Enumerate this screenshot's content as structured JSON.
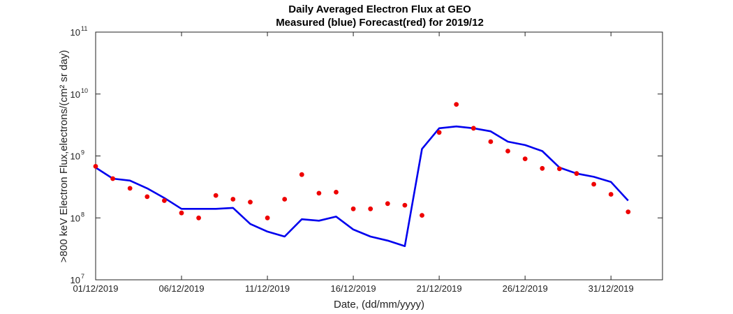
{
  "chart_data": {
    "type": "line",
    "title": "Daily Averaged Electron Flux at GEO",
    "subtitle": "Measured (blue) Forecast(red) for 2019/12",
    "xlabel": "Date, (dd/mm/yyyy)",
    "ylabel": ">800 keV Electron Flux,electrons/(cm² sr day)",
    "y_scale": "log",
    "ylim": [
      10000000.0,
      100000000000.0
    ],
    "xlim": [
      "2019-12-01",
      "2020-01-03"
    ],
    "x_ticks": [
      "01/12/2019",
      "06/12/2019",
      "11/12/2019",
      "16/12/2019",
      "21/12/2019",
      "26/12/2019",
      "31/12/2019"
    ],
    "y_ticks": [
      {
        "base": "10",
        "exp": "7"
      },
      {
        "base": "10",
        "exp": "8"
      },
      {
        "base": "10",
        "exp": "9"
      },
      {
        "base": "10",
        "exp": "10"
      },
      {
        "base": "10",
        "exp": "11"
      }
    ],
    "grid": false,
    "colors": {
      "measured": "#0000ee",
      "forecast": "#ee0000"
    },
    "series": [
      {
        "style": "line",
        "color": "#0000ee",
        "x": [
          "2019-12-01",
          "2019-12-02",
          "2019-12-03",
          "2019-12-04",
          "2019-12-05",
          "2019-12-06",
          "2019-12-07",
          "2019-12-08",
          "2019-12-09",
          "2019-12-10",
          "2019-12-11",
          "2019-12-12",
          "2019-12-13",
          "2019-12-14",
          "2019-12-15",
          "2019-12-16",
          "2019-12-17",
          "2019-12-18",
          "2019-12-19",
          "2019-12-20",
          "2019-12-21",
          "2019-12-22",
          "2019-12-23",
          "2019-12-24",
          "2019-12-25",
          "2019-12-26",
          "2019-12-27",
          "2019-12-28",
          "2019-12-29",
          "2019-12-30",
          "2019-12-31",
          "2020-01-01"
        ],
        "values": [
          650000000.0,
          430000000.0,
          400000000.0,
          300000000.0,
          210000000.0,
          140000000.0,
          140000000.0,
          140000000.0,
          145000000.0,
          80000000.0,
          60000000.0,
          50000000.0,
          95000000.0,
          90000000.0,
          105000000.0,
          65000000.0,
          50000000.0,
          43000000.0,
          35000000.0,
          1300000000.0,
          2800000000.0,
          3000000000.0,
          2800000000.0,
          2500000000.0,
          1700000000.0,
          1500000000.0,
          1200000000.0,
          650000000.0,
          520000000.0,
          460000000.0,
          380000000.0,
          190000000.0
        ]
      },
      {
        "style": "dots",
        "color": "#ee0000",
        "x": [
          "2019-12-01",
          "2019-12-02",
          "2019-12-03",
          "2019-12-04",
          "2019-12-05",
          "2019-12-06",
          "2019-12-07",
          "2019-12-08",
          "2019-12-09",
          "2019-12-10",
          "2019-12-11",
          "2019-12-12",
          "2019-12-13",
          "2019-12-14",
          "2019-12-15",
          "2019-12-16",
          "2019-12-17",
          "2019-12-18",
          "2019-12-19",
          "2019-12-20",
          "2019-12-21",
          "2019-12-22",
          "2019-12-23",
          "2019-12-24",
          "2019-12-25",
          "2019-12-26",
          "2019-12-27",
          "2019-12-28",
          "2019-12-29",
          "2019-12-30",
          "2019-12-31",
          "2020-01-01"
        ],
        "values": [
          680000000.0,
          430000000.0,
          300000000.0,
          220000000.0,
          190000000.0,
          120000000.0,
          100000000.0,
          230000000.0,
          200000000.0,
          180000000.0,
          100000000.0,
          200000000.0,
          500000000.0,
          250000000.0,
          260000000.0,
          140000000.0,
          140000000.0,
          170000000.0,
          160000000.0,
          110000000.0,
          2400000000.0,
          6800000000.0,
          2800000000.0,
          1700000000.0,
          1200000000.0,
          900000000.0,
          630000000.0,
          620000000.0,
          520000000.0,
          350000000.0,
          240000000.0,
          125000000.0
        ]
      }
    ]
  }
}
